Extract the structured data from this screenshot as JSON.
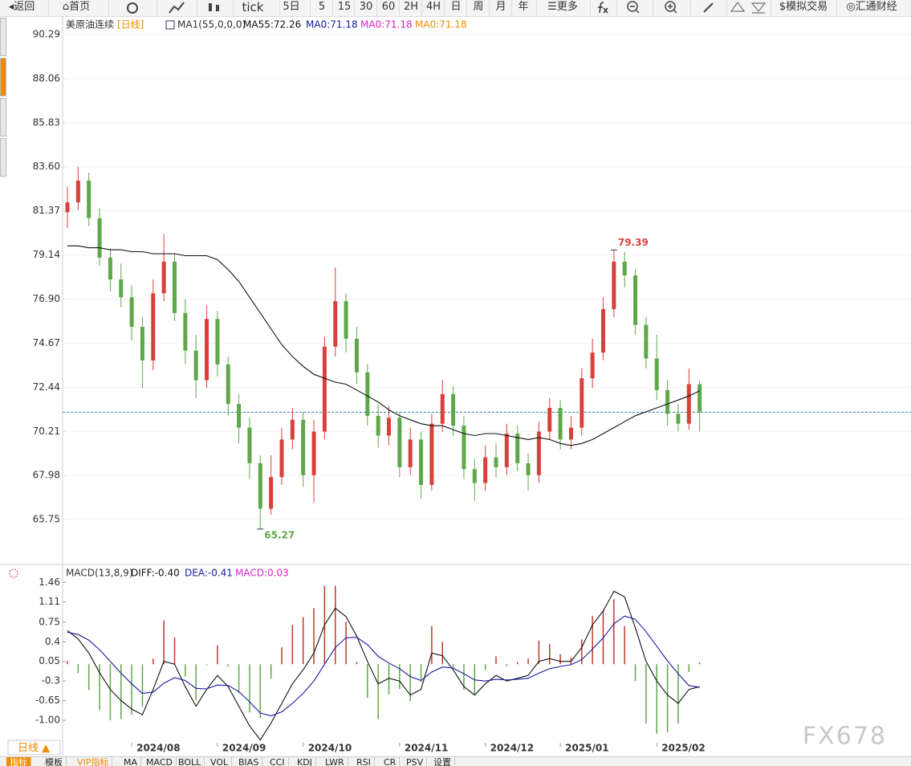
{
  "toolbar": {
    "back": "返回",
    "home": "首页",
    "tick": "tick",
    "periods": [
      "5日",
      "5",
      "15",
      "30",
      "60",
      "2H",
      "4H",
      "日",
      "周",
      "月",
      "年"
    ],
    "more": "更多",
    "trade": "模拟交易",
    "brand": "汇通财经"
  },
  "tabs": {
    "period": "日线 ▲",
    "items": [
      "指标",
      "模板",
      "VIP指标",
      "MA",
      "MACD",
      "BOLL",
      "VOL",
      "BIAS",
      "CCI",
      "KDJ",
      "LWR",
      "RSI",
      "CR",
      "PSV",
      "设置"
    ]
  },
  "watermark": "FX678",
  "chart_data": [
    {
      "type": "candlestick",
      "title": "美原油连续",
      "period": "[日线]",
      "indicator": "MA1(55,0,0,0)",
      "up_color": "#d9403a",
      "down_color": "#5fa84a",
      "open": [
        81.3,
        81.8,
        82.9,
        81.0,
        79.0,
        77.9,
        77.0,
        75.5,
        73.8,
        77.2,
        78.8,
        76.2,
        74.3,
        72.8,
        75.9,
        73.6,
        71.6,
        70.4,
        68.6,
        66.3,
        67.9,
        69.8,
        70.8,
        68.0,
        70.2,
        74.5,
        76.8,
        74.9,
        73.2,
        71.0,
        70.0,
        70.9,
        68.4,
        69.8,
        67.5,
        70.6,
        72.1,
        70.5,
        68.3,
        67.6,
        68.9,
        68.4,
        70.1,
        68.6,
        68.0,
        70.2,
        71.4,
        69.8,
        70.4,
        72.9,
        74.2,
        76.4,
        78.8,
        78.1,
        75.6,
        73.9,
        72.3,
        71.1,
        70.6,
        72.6
      ],
      "high": [
        82.6,
        83.6,
        83.3,
        81.5,
        79.5,
        78.7,
        77.6,
        76.0,
        77.9,
        80.2,
        79.2,
        76.9,
        75.1,
        76.6,
        76.3,
        74.0,
        72.1,
        70.9,
        69.0,
        69.0,
        70.4,
        71.4,
        71.2,
        70.8,
        75.0,
        78.5,
        77.2,
        75.5,
        73.6,
        71.6,
        71.5,
        71.2,
        70.4,
        70.2,
        71.1,
        72.8,
        72.5,
        71.0,
        68.8,
        69.5,
        69.6,
        70.6,
        70.5,
        69.1,
        70.7,
        71.9,
        71.8,
        71.0,
        73.4,
        74.9,
        77.0,
        79.39,
        79.3,
        78.4,
        76.0,
        75.1,
        72.8,
        71.6,
        73.4,
        72.8
      ],
      "low": [
        80.5,
        81.4,
        80.6,
        78.6,
        77.3,
        76.5,
        74.8,
        72.4,
        73.3,
        76.8,
        75.8,
        73.6,
        71.9,
        72.4,
        73.0,
        71.0,
        69.6,
        67.8,
        65.27,
        66.0,
        67.5,
        69.3,
        67.4,
        66.6,
        69.8,
        74.0,
        74.2,
        72.6,
        70.5,
        69.4,
        69.5,
        67.9,
        68.0,
        66.8,
        67.2,
        70.2,
        70.0,
        67.8,
        66.7,
        67.2,
        67.9,
        68.0,
        68.2,
        67.2,
        67.6,
        69.8,
        69.3,
        69.3,
        70.0,
        72.4,
        73.8,
        76.0,
        77.5,
        75.1,
        73.4,
        71.8,
        70.5,
        70.2,
        70.3,
        70.2
      ],
      "close": [
        81.8,
        82.9,
        81.0,
        79.0,
        77.9,
        77.0,
        75.5,
        73.8,
        77.2,
        78.8,
        76.2,
        74.3,
        72.8,
        75.9,
        73.6,
        71.6,
        70.4,
        68.6,
        66.3,
        67.9,
        69.8,
        70.8,
        68.0,
        70.2,
        74.5,
        76.8,
        74.9,
        73.2,
        71.0,
        70.0,
        70.9,
        68.4,
        69.8,
        67.5,
        70.6,
        72.1,
        70.5,
        68.3,
        67.6,
        68.9,
        68.4,
        70.1,
        68.6,
        68.0,
        70.2,
        71.4,
        69.8,
        70.4,
        72.9,
        74.2,
        76.4,
        78.8,
        78.1,
        75.6,
        73.9,
        72.3,
        71.1,
        70.6,
        72.6,
        71.2
      ],
      "series": [
        {
          "name": "MA55:72.26",
          "color": "#111111",
          "values": [
            79.6,
            79.6,
            79.5,
            79.5,
            79.4,
            79.4,
            79.3,
            79.3,
            79.2,
            79.2,
            79.2,
            79.1,
            79.1,
            79.1,
            78.9,
            78.4,
            77.8,
            77.0,
            76.2,
            75.4,
            74.6,
            74.0,
            73.5,
            73.1,
            72.9,
            72.7,
            72.6,
            72.3,
            72.0,
            71.7,
            71.3,
            71.0,
            70.8,
            70.6,
            70.5,
            70.5,
            70.3,
            70.1,
            70.0,
            70.1,
            70.1,
            70.0,
            69.9,
            69.8,
            69.9,
            69.8,
            69.6,
            69.5,
            69.6,
            69.8,
            70.1,
            70.4,
            70.7,
            71.0,
            71.2,
            71.4,
            71.6,
            71.8,
            72.0,
            72.26
          ]
        }
      ],
      "legend_extra": [
        {
          "label": "MA0:71.18",
          "color": "#1a1aa0"
        },
        {
          "label": "MA0:71.18",
          "color": "#e020d0"
        },
        {
          "label": "MA0:71.18",
          "color": "#f08a00"
        }
      ],
      "price_line": 71.18,
      "price_line_color": "#2a8a9a",
      "high_label_index": 51,
      "low_label_index": 18,
      "ylim": [
        63.6,
        90.9
      ],
      "yticks": [
        {
          "value": 90.29,
          "label": "90.29"
        },
        {
          "value": 88.06,
          "label": "88.06"
        },
        {
          "value": 85.83,
          "label": "85.83"
        },
        {
          "value": 83.6,
          "label": "83.60"
        },
        {
          "value": 81.37,
          "label": "81.37"
        },
        {
          "value": 79.14,
          "label": "79.14"
        },
        {
          "value": 76.9,
          "label": "76.90"
        },
        {
          "value": 74.67,
          "label": "74.67"
        },
        {
          "value": 72.44,
          "label": "72.44"
        },
        {
          "value": 70.21,
          "label": "70.21"
        },
        {
          "value": 67.98,
          "label": "67.98"
        },
        {
          "value": 65.75,
          "label": "65.75"
        }
      ],
      "grid": true
    },
    {
      "type": "macd",
      "title": "MACD(13,8,9)",
      "categories": [
        null,
        null,
        null,
        null,
        null,
        null,
        "2024/08",
        null,
        null,
        null,
        null,
        null,
        null,
        null,
        "2024/09",
        null,
        null,
        null,
        null,
        null,
        null,
        null,
        "2024/10",
        null,
        null,
        null,
        null,
        null,
        null,
        null,
        null,
        "2024/11",
        null,
        null,
        null,
        null,
        null,
        null,
        null,
        "2024/12",
        null,
        null,
        null,
        null,
        null,
        null,
        "2025/01",
        null,
        null,
        null,
        null,
        null,
        null,
        null,
        null,
        "2025/02",
        null,
        null,
        null,
        null
      ],
      "series": [
        {
          "name": "DIFF:-0.40",
          "color": "#111111",
          "values": [
            0.6,
            0.45,
            0.2,
            -0.15,
            -0.45,
            -0.65,
            -0.8,
            -0.9,
            -0.45,
            0.05,
            0.0,
            -0.4,
            -0.75,
            -0.45,
            -0.2,
            -0.4,
            -0.75,
            -1.1,
            -1.35,
            -1.05,
            -0.7,
            -0.35,
            -0.1,
            0.2,
            0.7,
            1.0,
            0.85,
            0.5,
            0.05,
            -0.35,
            -0.25,
            -0.3,
            -0.55,
            -0.45,
            0.2,
            0.15,
            -0.1,
            -0.4,
            -0.55,
            -0.35,
            -0.2,
            -0.3,
            -0.25,
            -0.2,
            0.05,
            0.1,
            0.05,
            0.05,
            0.3,
            0.7,
            0.95,
            1.3,
            1.2,
            0.65,
            0.05,
            -0.3,
            -0.55,
            -0.7,
            -0.45,
            -0.4
          ]
        },
        {
          "name": "DEA:-0.41",
          "color": "#1a1aa0",
          "values": [
            0.57,
            0.53,
            0.43,
            0.26,
            0.05,
            -0.16,
            -0.35,
            -0.52,
            -0.5,
            -0.34,
            -0.24,
            -0.29,
            -0.43,
            -0.44,
            -0.37,
            -0.38,
            -0.49,
            -0.67,
            -0.87,
            -0.92,
            -0.85,
            -0.7,
            -0.52,
            -0.3,
            0.0,
            0.3,
            0.47,
            0.48,
            0.35,
            0.14,
            0.02,
            -0.08,
            -0.22,
            -0.29,
            -0.14,
            -0.05,
            -0.07,
            -0.17,
            -0.28,
            -0.3,
            -0.27,
            -0.28,
            -0.27,
            -0.25,
            -0.16,
            -0.08,
            -0.04,
            -0.01,
            0.08,
            0.27,
            0.47,
            0.72,
            0.86,
            0.8,
            0.58,
            0.32,
            0.06,
            -0.17,
            -0.38,
            -0.41
          ]
        }
      ],
      "histogram": {
        "name": "MACD:0.03",
        "color": "#e020d0",
        "up_color": "#c0392b",
        "down_color": "#5fa84a",
        "values": [
          0.06,
          -0.16,
          -0.46,
          -0.82,
          -1.0,
          -0.98,
          -0.9,
          -0.76,
          0.1,
          0.78,
          0.48,
          -0.22,
          -0.64,
          -0.02,
          0.34,
          -0.04,
          -0.52,
          -0.86,
          -0.96,
          -0.26,
          0.3,
          0.7,
          0.84,
          1.0,
          1.4,
          1.4,
          0.76,
          0.04,
          -0.6,
          -0.98,
          -0.54,
          -0.44,
          -0.66,
          -0.32,
          0.68,
          0.4,
          -0.06,
          -0.46,
          -0.54,
          -0.1,
          0.14,
          -0.04,
          0.04,
          0.1,
          0.42,
          0.36,
          0.18,
          0.12,
          0.44,
          0.86,
          0.96,
          1.16,
          0.68,
          -0.3,
          -1.06,
          -1.24,
          -1.22,
          -1.06,
          -0.14,
          0.03
        ]
      },
      "ylim": [
        -1.4,
        1.75
      ],
      "yticks": [
        1.46,
        1.11,
        0.75,
        0.4,
        0.05,
        -0.3,
        -0.65,
        {
          "value": -1.0,
          "label": "-1.00"
        }
      ]
    }
  ]
}
